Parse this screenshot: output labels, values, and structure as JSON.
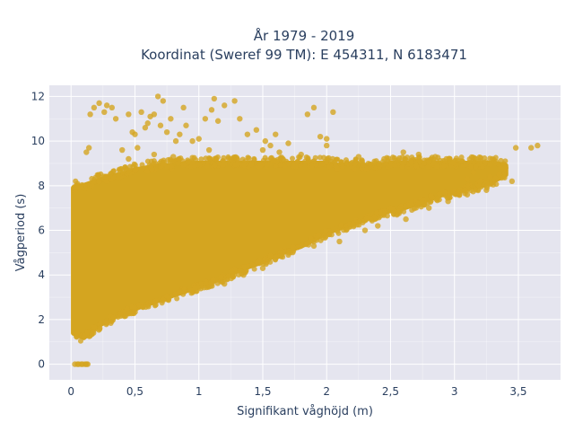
{
  "chart_data": {
    "type": "scatter",
    "title_lines": [
      "År 1979 - 2019",
      "Koordinat (Sweref 99 TM): E 454311, N 6183471"
    ],
    "xlabel": "Signifikant våghöjd (m)",
    "ylabel": "Vågperiod (s)",
    "xlim": [
      -0.17,
      3.83
    ],
    "ylim": [
      -0.7,
      12.5
    ],
    "x_ticks": [
      {
        "v": 0,
        "label": "0"
      },
      {
        "v": 0.5,
        "label": "0,5"
      },
      {
        "v": 1,
        "label": "1"
      },
      {
        "v": 1.5,
        "label": "1,5"
      },
      {
        "v": 2,
        "label": "2"
      },
      {
        "v": 2.5,
        "label": "2,5"
      },
      {
        "v": 3,
        "label": "3"
      },
      {
        "v": 3.5,
        "label": "3,5"
      }
    ],
    "y_ticks": [
      {
        "v": 0,
        "label": "0"
      },
      {
        "v": 2,
        "label": "2"
      },
      {
        "v": 4,
        "label": "4"
      },
      {
        "v": 6,
        "label": "6"
      },
      {
        "v": 8,
        "label": "8"
      },
      {
        "v": 10,
        "label": "10"
      },
      {
        "v": 12,
        "label": "12"
      }
    ],
    "grid": true,
    "marker_color": "#d4a520",
    "background_color": "#e5e5ef",
    "envelope": [
      {
        "x": 0.02,
        "ymin": 1.4,
        "ymax": 7.9
      },
      {
        "x": 0.1,
        "ymin": 1.2,
        "ymax": 8.0
      },
      {
        "x": 0.2,
        "ymin": 1.7,
        "ymax": 8.2
      },
      {
        "x": 0.3,
        "ymin": 2.0,
        "ymax": 8.4
      },
      {
        "x": 0.4,
        "ymin": 2.3,
        "ymax": 8.5
      },
      {
        "x": 0.5,
        "ymin": 2.5,
        "ymax": 8.7
      },
      {
        "x": 0.6,
        "ymin": 2.7,
        "ymax": 8.8
      },
      {
        "x": 0.7,
        "ymin": 2.9,
        "ymax": 8.9
      },
      {
        "x": 0.8,
        "ymin": 3.1,
        "ymax": 8.9
      },
      {
        "x": 0.9,
        "ymin": 3.3,
        "ymax": 9.0
      },
      {
        "x": 1.0,
        "ymin": 3.5,
        "ymax": 9.0
      },
      {
        "x": 1.1,
        "ymin": 3.7,
        "ymax": 9.0
      },
      {
        "x": 1.2,
        "ymin": 3.9,
        "ymax": 9.0
      },
      {
        "x": 1.3,
        "ymin": 4.2,
        "ymax": 9.0
      },
      {
        "x": 1.4,
        "ymin": 4.4,
        "ymax": 9.0
      },
      {
        "x": 1.5,
        "ymin": 4.6,
        "ymax": 9.0
      },
      {
        "x": 1.6,
        "ymin": 4.9,
        "ymax": 9.0
      },
      {
        "x": 1.7,
        "ymin": 5.1,
        "ymax": 9.0
      },
      {
        "x": 1.8,
        "ymin": 5.3,
        "ymax": 9.0
      },
      {
        "x": 1.9,
        "ymin": 5.6,
        "ymax": 9.0
      },
      {
        "x": 2.0,
        "ymin": 5.9,
        "ymax": 9.0
      },
      {
        "x": 2.1,
        "ymin": 6.1,
        "ymax": 8.9
      },
      {
        "x": 2.2,
        "ymin": 6.3,
        "ymax": 8.9
      },
      {
        "x": 2.3,
        "ymin": 6.5,
        "ymax": 8.9
      },
      {
        "x": 2.4,
        "ymin": 6.7,
        "ymax": 8.9
      },
      {
        "x": 2.5,
        "ymin": 6.9,
        "ymax": 9.0
      },
      {
        "x": 2.6,
        "ymin": 7.0,
        "ymax": 9.0
      },
      {
        "x": 2.7,
        "ymin": 7.2,
        "ymax": 9.0
      },
      {
        "x": 2.8,
        "ymin": 7.4,
        "ymax": 9.0
      },
      {
        "x": 2.9,
        "ymin": 7.6,
        "ymax": 9.0
      },
      {
        "x": 3.0,
        "ymin": 7.7,
        "ymax": 9.0
      },
      {
        "x": 3.1,
        "ymin": 7.9,
        "ymax": 9.0
      },
      {
        "x": 3.2,
        "ymin": 8.0,
        "ymax": 9.0
      },
      {
        "x": 3.3,
        "ymin": 8.2,
        "ymax": 9.0
      },
      {
        "x": 3.4,
        "ymin": 8.5,
        "ymax": 8.9
      }
    ],
    "outliers": [
      [
        0.15,
        11.2
      ],
      [
        0.18,
        11.5
      ],
      [
        0.22,
        11.7
      ],
      [
        0.26,
        11.3
      ],
      [
        0.28,
        11.6
      ],
      [
        0.32,
        11.5
      ],
      [
        0.35,
        11.0
      ],
      [
        0.45,
        11.2
      ],
      [
        0.48,
        10.4
      ],
      [
        0.5,
        10.3
      ],
      [
        0.55,
        11.3
      ],
      [
        0.58,
        10.6
      ],
      [
        0.6,
        10.8
      ],
      [
        0.62,
        11.1
      ],
      [
        0.65,
        11.2
      ],
      [
        0.68,
        12.0
      ],
      [
        0.7,
        10.7
      ],
      [
        0.72,
        11.8
      ],
      [
        0.75,
        10.4
      ],
      [
        0.78,
        11.0
      ],
      [
        0.82,
        10.0
      ],
      [
        0.85,
        10.3
      ],
      [
        0.88,
        11.5
      ],
      [
        0.9,
        10.7
      ],
      [
        0.95,
        10.0
      ],
      [
        1.0,
        10.1
      ],
      [
        1.05,
        11.0
      ],
      [
        1.1,
        11.4
      ],
      [
        1.12,
        11.9
      ],
      [
        1.15,
        10.9
      ],
      [
        1.2,
        11.6
      ],
      [
        1.28,
        11.8
      ],
      [
        1.32,
        11.0
      ],
      [
        1.38,
        10.3
      ],
      [
        1.45,
        10.5
      ],
      [
        1.52,
        10.0
      ],
      [
        1.56,
        9.8
      ],
      [
        1.6,
        10.3
      ],
      [
        1.7,
        9.9
      ],
      [
        1.85,
        11.2
      ],
      [
        1.9,
        11.5
      ],
      [
        1.95,
        10.2
      ],
      [
        2.0,
        10.1
      ],
      [
        2.05,
        11.3
      ],
      [
        2.0,
        9.8
      ],
      [
        0.12,
        9.5
      ],
      [
        0.14,
        9.7
      ],
      [
        0.4,
        9.6
      ],
      [
        0.45,
        9.2
      ],
      [
        0.52,
        9.7
      ],
      [
        0.65,
        9.4
      ],
      [
        0.8,
        9.3
      ],
      [
        1.08,
        9.6
      ],
      [
        1.25,
        9.2
      ],
      [
        1.5,
        9.6
      ],
      [
        1.63,
        9.5
      ],
      [
        1.8,
        9.4
      ],
      [
        1.9,
        9.1
      ],
      [
        2.25,
        9.3
      ],
      [
        2.45,
        9.2
      ],
      [
        2.6,
        9.5
      ],
      [
        2.72,
        9.4
      ],
      [
        2.85,
        9.3
      ],
      [
        3.05,
        9.1
      ],
      [
        3.1,
        8.3
      ],
      [
        3.15,
        8.6
      ],
      [
        3.2,
        8.2
      ],
      [
        3.28,
        8.4
      ],
      [
        3.35,
        8.5
      ],
      [
        3.4,
        8.8
      ],
      [
        3.45,
        8.2
      ],
      [
        3.48,
        9.7
      ],
      [
        3.6,
        9.7
      ],
      [
        3.65,
        9.8
      ],
      [
        2.4,
        6.2
      ],
      [
        2.55,
        6.7
      ],
      [
        2.95,
        7.3
      ],
      [
        3.1,
        7.6
      ],
      [
        2.1,
        5.5
      ],
      [
        1.9,
        5.3
      ],
      [
        1.7,
        4.9
      ],
      [
        1.5,
        4.3
      ],
      [
        1.35,
        4.0
      ],
      [
        1.2,
        3.6
      ],
      [
        2.3,
        6.0
      ],
      [
        2.62,
        6.5
      ],
      [
        2.8,
        7.0
      ],
      [
        3.25,
        7.8
      ]
    ],
    "zero_points": [
      [
        0.03,
        0
      ],
      [
        0.05,
        0
      ],
      [
        0.06,
        0
      ],
      [
        0.08,
        0
      ],
      [
        0.09,
        0
      ],
      [
        0.11,
        0
      ],
      [
        0.12,
        0
      ],
      [
        0.13,
        0
      ]
    ]
  }
}
